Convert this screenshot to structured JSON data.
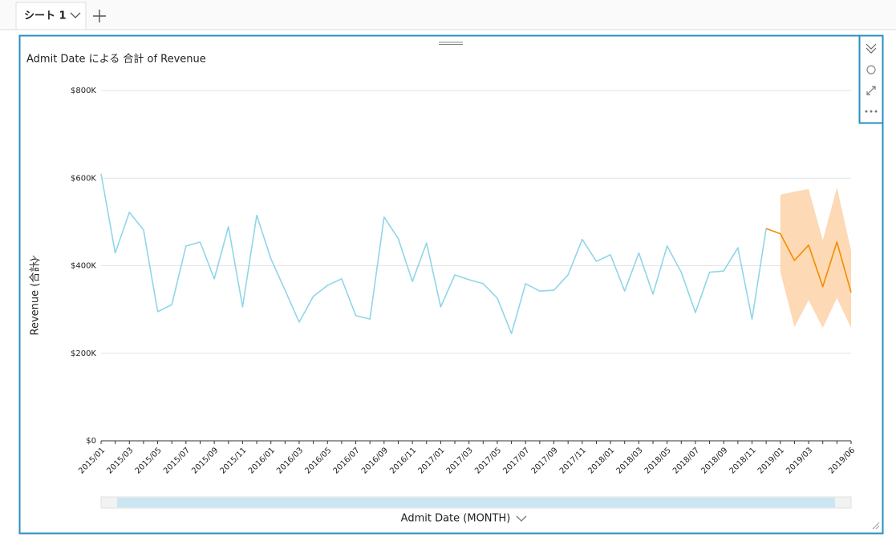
{
  "tab": {
    "label": "シート 1"
  },
  "chart_data": {
    "type": "line",
    "title": "Admit Date による 合計 of Revenue",
    "x_label": "Admit Date (MONTH)",
    "y_label": "Revenue (合計)",
    "categories": [
      "2015/01",
      null,
      "2015/03",
      null,
      "2015/05",
      null,
      "2015/07",
      null,
      "2015/09",
      null,
      "2015/11",
      null,
      "2016/01",
      null,
      "2016/03",
      null,
      "2016/05",
      null,
      "2016/07",
      null,
      "2016/09",
      null,
      "2016/11",
      null,
      "2017/01",
      null,
      "2017/03",
      null,
      "2017/05",
      null,
      "2017/07",
      null,
      "2017/09",
      null,
      "2017/11",
      null,
      "2018/01",
      null,
      "2018/03",
      null,
      "2018/05",
      null,
      "2018/07",
      null,
      "2018/09",
      null,
      "2018/11",
      null,
      "2019/01",
      null,
      "2019/03",
      null,
      null,
      "2019/06"
    ],
    "series": [
      {
        "color": "#8fd6e8",
        "values": [
          610000,
          429000,
          522000,
          482000,
          295000,
          311000,
          445000,
          454000,
          370000,
          489000,
          306000,
          515000,
          416000,
          344000,
          271000,
          330000,
          355000,
          370000,
          286000,
          278000,
          511000,
          462000,
          364000,
          452000,
          306000,
          379000,
          368000,
          359000,
          326000,
          245000,
          359000,
          342000,
          344000,
          379000,
          460000,
          410000,
          425000,
          342000,
          429000,
          335000,
          445000,
          385000,
          293000,
          385000,
          388000,
          441000,
          278000,
          485000,
          null,
          null,
          null,
          null,
          null,
          null
        ]
      },
      {
        "color": "#f28e00",
        "values": [
          null,
          null,
          null,
          null,
          null,
          null,
          null,
          null,
          null,
          null,
          null,
          null,
          null,
          null,
          null,
          null,
          null,
          null,
          null,
          null,
          null,
          null,
          null,
          null,
          null,
          null,
          null,
          null,
          null,
          null,
          null,
          null,
          null,
          null,
          null,
          null,
          null,
          null,
          null,
          null,
          null,
          null,
          null,
          null,
          null,
          null,
          null,
          485000,
          473000,
          412000,
          447000,
          352000,
          454000,
          339000
        ]
      }
    ],
    "band": {
      "color": "#fdd9b5",
      "upper": [
        null,
        null,
        null,
        null,
        null,
        null,
        null,
        null,
        null,
        null,
        null,
        null,
        null,
        null,
        null,
        null,
        null,
        null,
        null,
        null,
        null,
        null,
        null,
        null,
        null,
        null,
        null,
        null,
        null,
        null,
        null,
        null,
        null,
        null,
        null,
        null,
        null,
        null,
        null,
        null,
        null,
        null,
        null,
        null,
        null,
        null,
        null,
        null,
        562000,
        569000,
        575000,
        458000,
        579000,
        434000
      ],
      "lower": [
        null,
        null,
        null,
        null,
        null,
        null,
        null,
        null,
        null,
        null,
        null,
        null,
        null,
        null,
        null,
        null,
        null,
        null,
        null,
        null,
        null,
        null,
        null,
        null,
        null,
        null,
        null,
        null,
        null,
        null,
        null,
        null,
        null,
        null,
        null,
        null,
        null,
        null,
        null,
        null,
        null,
        null,
        null,
        null,
        null,
        null,
        null,
        null,
        386000,
        260000,
        321000,
        258000,
        326000,
        258000
      ]
    },
    "ylim": [
      0,
      800000
    ],
    "yticks": [
      {
        "value": 0,
        "label": "$0"
      },
      {
        "value": 200000,
        "label": "$200K"
      },
      {
        "value": 400000,
        "label": "$400K"
      },
      {
        "value": 600000,
        "label": "$600K"
      },
      {
        "value": 800000,
        "label": "$800K"
      }
    ],
    "grid": true
  }
}
